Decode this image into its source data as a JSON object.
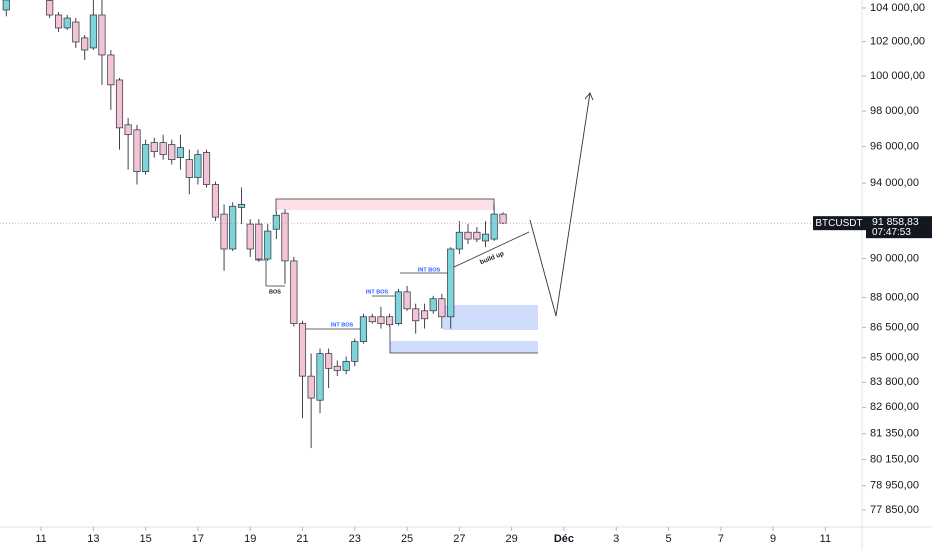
{
  "chart_data": {
    "type": "candlestick",
    "symbol": "BTCUSDT",
    "last_price_label": "91 858,83",
    "countdown": "07:47:53",
    "up_color": "#7fd4dc",
    "down_color": "#f3c4d5",
    "outline_color": "#2a2e39",
    "log_scale": true,
    "grid": false,
    "x": [
      -1.33,
      0.33,
      0.67,
      1,
      1.33,
      1.67,
      2,
      2.33,
      2.67,
      3,
      3.33,
      3.67,
      4,
      4.33,
      4.67,
      5,
      5.33,
      5.67,
      6,
      6.33,
      6.67,
      7,
      7.33,
      7.67,
      8,
      8.33,
      8.67,
      9,
      9.33,
      9.67,
      10,
      10.33,
      10.67,
      11,
      11.33,
      11.67,
      12,
      12.33,
      12.67,
      13,
      13.33,
      13.67,
      14,
      14.33,
      14.67,
      15,
      15.33,
      15.67,
      16,
      16.33,
      16.67,
      17,
      17.33,
      17.67
    ],
    "open": [
      103880,
      104450,
      103580,
      102810,
      103160,
      102220,
      101630,
      103580,
      101220,
      99770,
      97220,
      96940,
      94630,
      96230,
      96230,
      96120,
      95400,
      95290,
      94310,
      95680,
      93930,
      92340,
      90500,
      92700,
      91810,
      91810,
      89980,
      91540,
      92390,
      89880,
      86690,
      84100,
      82940,
      85200,
      84580,
      84380,
      84820,
      85790,
      87030,
      87030,
      87030,
      86690,
      88290,
      87430,
      87330,
      87330,
      87940,
      87030,
      90500,
      91380,
      91380,
      90920,
      91020,
      92340
    ],
    "high": [
      104480,
      104480,
      103760,
      103580,
      103400,
      102390,
      104480,
      104480,
      101510,
      99890,
      97610,
      97220,
      96390,
      96500,
      96670,
      96390,
      96670,
      95840,
      95840,
      95840,
      94090,
      92860,
      92970,
      93770,
      92070,
      92070,
      91810,
      92490,
      92600,
      90090,
      86830,
      85200,
      85450,
      85450,
      84860,
      85060,
      85940,
      87180,
      87180,
      87530,
      87180,
      88440,
      88590,
      87690,
      87690,
      88090,
      88190,
      90600,
      91970,
      91810,
      91650,
      91970,
      92860,
      92440
    ],
    "low": [
      103500,
      103400,
      102570,
      102690,
      101630,
      100930,
      101510,
      99490,
      98060,
      95840,
      94740,
      93930,
      94470,
      95400,
      95290,
      95020,
      94740,
      93400,
      93930,
      93770,
      91970,
      89370,
      90400,
      91810,
      90090,
      89830,
      89880,
      91020,
      88700,
      86540,
      82090,
      80680,
      82320,
      83520,
      84100,
      84190,
      84580,
      85690,
      86690,
      86440,
      86540,
      86590,
      87330,
      86190,
      86440,
      87180,
      86440,
      86440,
      90240,
      90760,
      90860,
      90600,
      90920,
      91810
    ],
    "close": [
      104480,
      103580,
      102810,
      103400,
      101980,
      101510,
      103580,
      101220,
      99490,
      97050,
      96670,
      94630,
      96120,
      95730,
      95570,
      95290,
      95950,
      94310,
      95570,
      93930,
      92180,
      90500,
      92760,
      92860,
      90500,
      89980,
      91440,
      92280,
      89880,
      86690,
      84100,
      83040,
      85200,
      84480,
      84380,
      84820,
      85790,
      87030,
      86780,
      86690,
      86630,
      88290,
      87430,
      86830,
      86930,
      87940,
      87030,
      90500,
      91380,
      91020,
      91020,
      91280,
      92340,
      91858.83
    ],
    "xlim": [
      -1.57,
      31.4
    ],
    "xticks": [
      {
        "value": 0,
        "label": "11"
      },
      {
        "value": 2,
        "label": "13"
      },
      {
        "value": 4,
        "label": "15"
      },
      {
        "value": 6,
        "label": "17"
      },
      {
        "value": 8,
        "label": "19"
      },
      {
        "value": 10,
        "label": "21"
      },
      {
        "value": 12,
        "label": "23"
      },
      {
        "value": 14,
        "label": "25"
      },
      {
        "value": 16,
        "label": "27"
      },
      {
        "value": 18,
        "label": "29"
      },
      {
        "value": 20,
        "label": "Déc"
      },
      {
        "value": 22,
        "label": "3"
      },
      {
        "value": 24,
        "label": "5"
      },
      {
        "value": 26,
        "label": "7"
      },
      {
        "value": 28,
        "label": "9"
      },
      {
        "value": 30,
        "label": "11"
      }
    ],
    "ylim": [
      77090,
      104480
    ],
    "yticks": [
      {
        "value": 104000,
        "label": "104 000,00"
      },
      {
        "value": 102000,
        "label": "102 000,00"
      },
      {
        "value": 100000,
        "label": "100 000,00"
      },
      {
        "value": 98000,
        "label": "98 000,00"
      },
      {
        "value": 96000,
        "label": "96 000,00"
      },
      {
        "value": 94000,
        "label": "94 000,00"
      },
      {
        "value": 90000,
        "label": "90 000,00"
      },
      {
        "value": 88000,
        "label": "88 000,00"
      },
      {
        "value": 86500,
        "label": "86 500,00"
      },
      {
        "value": 85000,
        "label": "85 000,00"
      },
      {
        "value": 83800,
        "label": "83 800,00"
      },
      {
        "value": 82600,
        "label": "82 600,00"
      },
      {
        "value": 81350,
        "label": "81 350,00"
      },
      {
        "value": 80150,
        "label": "80 150,00"
      },
      {
        "value": 78950,
        "label": "78 950,00"
      },
      {
        "value": 77850,
        "label": "77 850,00"
      }
    ],
    "annotations": [
      "BOS",
      "INT BOS",
      "INT BOS",
      "INT BOS",
      "build up"
    ]
  }
}
